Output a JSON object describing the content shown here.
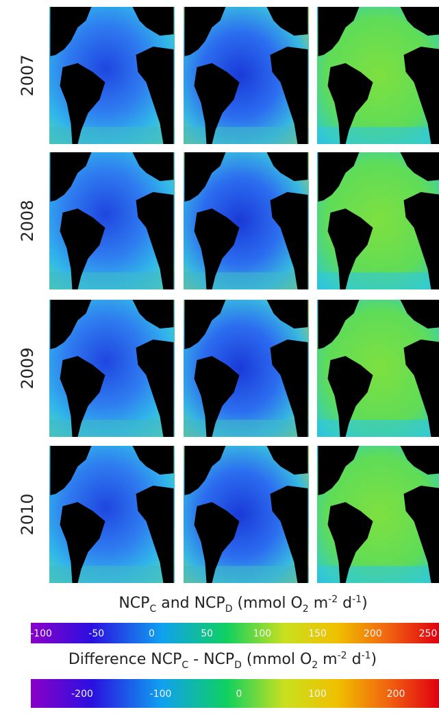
{
  "row_labels": [
    "2007",
    "2008",
    "2009",
    "2010"
  ],
  "colorbars": [
    {
      "title": [
        "NCP",
        "C",
        " and NCP",
        "D",
        " (mmol O",
        "2",
        " m",
        "-2",
        " d",
        "-1",
        ")"
      ],
      "ticks": [
        -100,
        -50,
        0,
        50,
        100,
        150,
        200,
        250
      ]
    },
    {
      "title": [
        "Difference NCP",
        "C",
        " - NCP",
        "D",
        " (mmol O",
        "2",
        " m",
        "-2",
        " d",
        "-1",
        ")"
      ],
      "ticks": [
        -200,
        -100,
        0,
        100,
        200
      ]
    }
  ]
}
